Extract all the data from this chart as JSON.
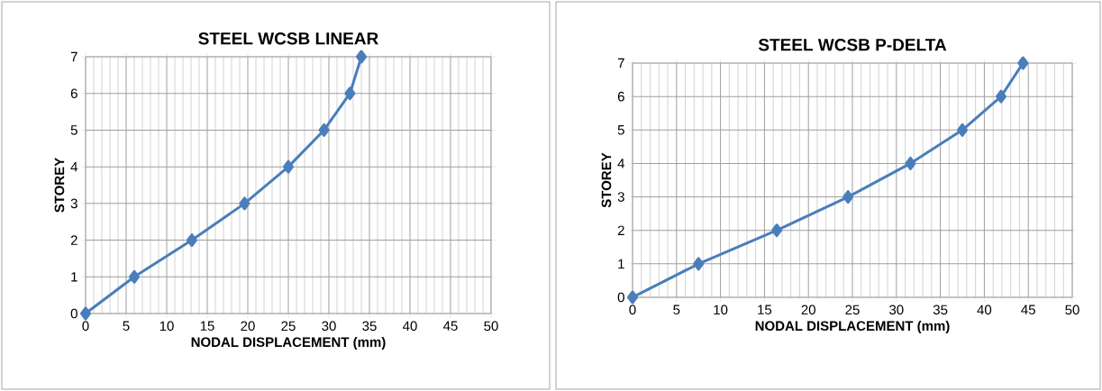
{
  "chart_data": [
    {
      "type": "line",
      "title": "STEEL WCSB LINEAR",
      "xlabel": "NODAL DISPLACEMENT (mm)",
      "ylabel": "STOREY",
      "xlim": [
        0,
        50
      ],
      "xticks": [
        0,
        5,
        10,
        15,
        20,
        25,
        30,
        35,
        40,
        45,
        50
      ],
      "ylim": [
        0,
        7
      ],
      "yticks": [
        0,
        1,
        2,
        3,
        4,
        5,
        6,
        7
      ],
      "grid": true,
      "marker": "diamond",
      "series": [
        {
          "color": "#4a7ebb",
          "x": [
            0,
            6.0,
            13.1,
            19.6,
            25.0,
            29.4,
            32.6,
            34.0
          ],
          "values": [
            0,
            1,
            2,
            3,
            4,
            5,
            6,
            7
          ]
        }
      ]
    },
    {
      "type": "line",
      "title": "STEEL WCSB P-DELTA",
      "xlabel": "NODAL DISPLACEMENT (mm)",
      "ylabel": "STOREY",
      "xlim": [
        0,
        50
      ],
      "xticks": [
        0,
        5,
        10,
        15,
        20,
        25,
        30,
        35,
        40,
        45,
        50
      ],
      "ylim": [
        0,
        7
      ],
      "yticks": [
        0,
        1,
        2,
        3,
        4,
        5,
        6,
        7
      ],
      "grid": true,
      "marker": "diamond",
      "series": [
        {
          "color": "#4a7ebb",
          "x": [
            0,
            7.5,
            16.4,
            24.5,
            31.6,
            37.5,
            41.9,
            44.4
          ],
          "values": [
            0,
            1,
            2,
            3,
            4,
            5,
            6,
            7
          ]
        }
      ]
    }
  ]
}
